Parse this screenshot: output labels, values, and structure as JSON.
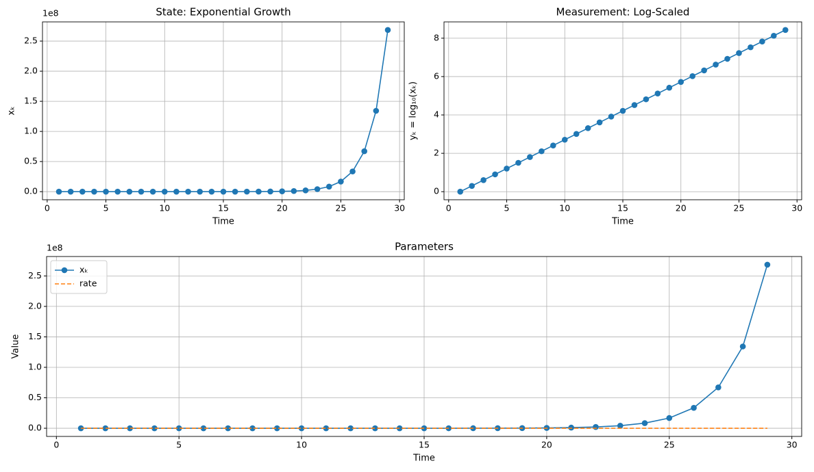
{
  "chart_data": [
    {
      "type": "line",
      "title": "State: Exponential Growth",
      "xlabel": "Time",
      "ylabel": "xₖ",
      "y_offset_label": "1e8",
      "x": [
        1,
        2,
        3,
        4,
        5,
        6,
        7,
        8,
        9,
        10,
        11,
        12,
        13,
        14,
        15,
        16,
        17,
        18,
        19,
        20,
        21,
        22,
        23,
        24,
        25,
        26,
        27,
        28,
        29
      ],
      "series": [
        {
          "color": "#1f77b4",
          "marker": true,
          "dashed": false,
          "values": [
            1,
            2,
            4,
            8,
            16,
            32,
            64,
            128,
            256,
            512,
            1024,
            2048,
            4096,
            8192,
            16384,
            32768,
            65536,
            131072,
            262144,
            524288,
            1048576,
            2097152,
            4194304,
            8388608,
            16777216,
            33554432,
            67108864,
            134217728,
            268435456
          ]
        }
      ],
      "xlim": [
        -0.4,
        30.4
      ],
      "ylim": [
        -13421772,
        281857229
      ],
      "xticks": [
        0,
        5,
        10,
        15,
        20,
        25,
        30
      ],
      "yticks": [
        {
          "value": 0,
          "label": "0.0"
        },
        {
          "value": 50000000,
          "label": "0.5"
        },
        {
          "value": 100000000,
          "label": "1.0"
        },
        {
          "value": 150000000,
          "label": "1.5"
        },
        {
          "value": 200000000,
          "label": "2.0"
        },
        {
          "value": 250000000,
          "label": "2.5"
        }
      ],
      "grid": true
    },
    {
      "type": "line",
      "title": "Measurement: Log-Scaled",
      "xlabel": "Time",
      "ylabel": "yₖ = log₁₀(xₖ)",
      "x": [
        1,
        2,
        3,
        4,
        5,
        6,
        7,
        8,
        9,
        10,
        11,
        12,
        13,
        14,
        15,
        16,
        17,
        18,
        19,
        20,
        21,
        22,
        23,
        24,
        25,
        26,
        27,
        28,
        29
      ],
      "series": [
        {
          "color": "#1f77b4",
          "marker": true,
          "dashed": false,
          "values": [
            0,
            0.301,
            0.602,
            0.903,
            1.204,
            1.505,
            1.806,
            2.107,
            2.408,
            2.709,
            3.01,
            3.311,
            3.612,
            3.913,
            4.214,
            4.515,
            4.816,
            5.118,
            5.419,
            5.72,
            6.021,
            6.322,
            6.623,
            6.924,
            7.225,
            7.526,
            7.827,
            8.128,
            8.429
          ]
        }
      ],
      "xlim": [
        -0.4,
        30.4
      ],
      "ylim": [
        -0.42,
        8.85
      ],
      "xticks": [
        0,
        5,
        10,
        15,
        20,
        25,
        30
      ],
      "yticks": [
        0,
        2,
        4,
        6,
        8
      ],
      "grid": true
    },
    {
      "type": "line",
      "title": "Parameters",
      "xlabel": "Time",
      "ylabel": "Value",
      "y_offset_label": "1e8",
      "legend": "upper left",
      "x": [
        1,
        2,
        3,
        4,
        5,
        6,
        7,
        8,
        9,
        10,
        11,
        12,
        13,
        14,
        15,
        16,
        17,
        18,
        19,
        20,
        21,
        22,
        23,
        24,
        25,
        26,
        27,
        28,
        29
      ],
      "series": [
        {
          "name": "xₖ",
          "color": "#1f77b4",
          "marker": true,
          "dashed": false,
          "values": [
            1,
            2,
            4,
            8,
            16,
            32,
            64,
            128,
            256,
            512,
            1024,
            2048,
            4096,
            8192,
            16384,
            32768,
            65536,
            131072,
            262144,
            524288,
            1048576,
            2097152,
            4194304,
            8388608,
            16777216,
            33554432,
            67108864,
            134217728,
            268435456
          ]
        },
        {
          "name": "rate",
          "color": "#ff7f0e",
          "marker": false,
          "dashed": true,
          "values": [
            0,
            0,
            0,
            0,
            0,
            0,
            0,
            0,
            0,
            0,
            0,
            0,
            0,
            0,
            0,
            0,
            0,
            0,
            0,
            0,
            0,
            0,
            0,
            0,
            0,
            0,
            0,
            0,
            0
          ]
        }
      ],
      "xlim": [
        -0.4,
        30.4
      ],
      "ylim": [
        -13421772,
        281857229
      ],
      "xticks": [
        0,
        5,
        10,
        15,
        20,
        25,
        30
      ],
      "yticks": [
        {
          "value": 0,
          "label": "0.0"
        },
        {
          "value": 50000000,
          "label": "0.5"
        },
        {
          "value": 100000000,
          "label": "1.0"
        },
        {
          "value": 150000000,
          "label": "1.5"
        },
        {
          "value": 200000000,
          "label": "2.0"
        },
        {
          "value": 250000000,
          "label": "2.5"
        }
      ],
      "grid": true
    }
  ]
}
